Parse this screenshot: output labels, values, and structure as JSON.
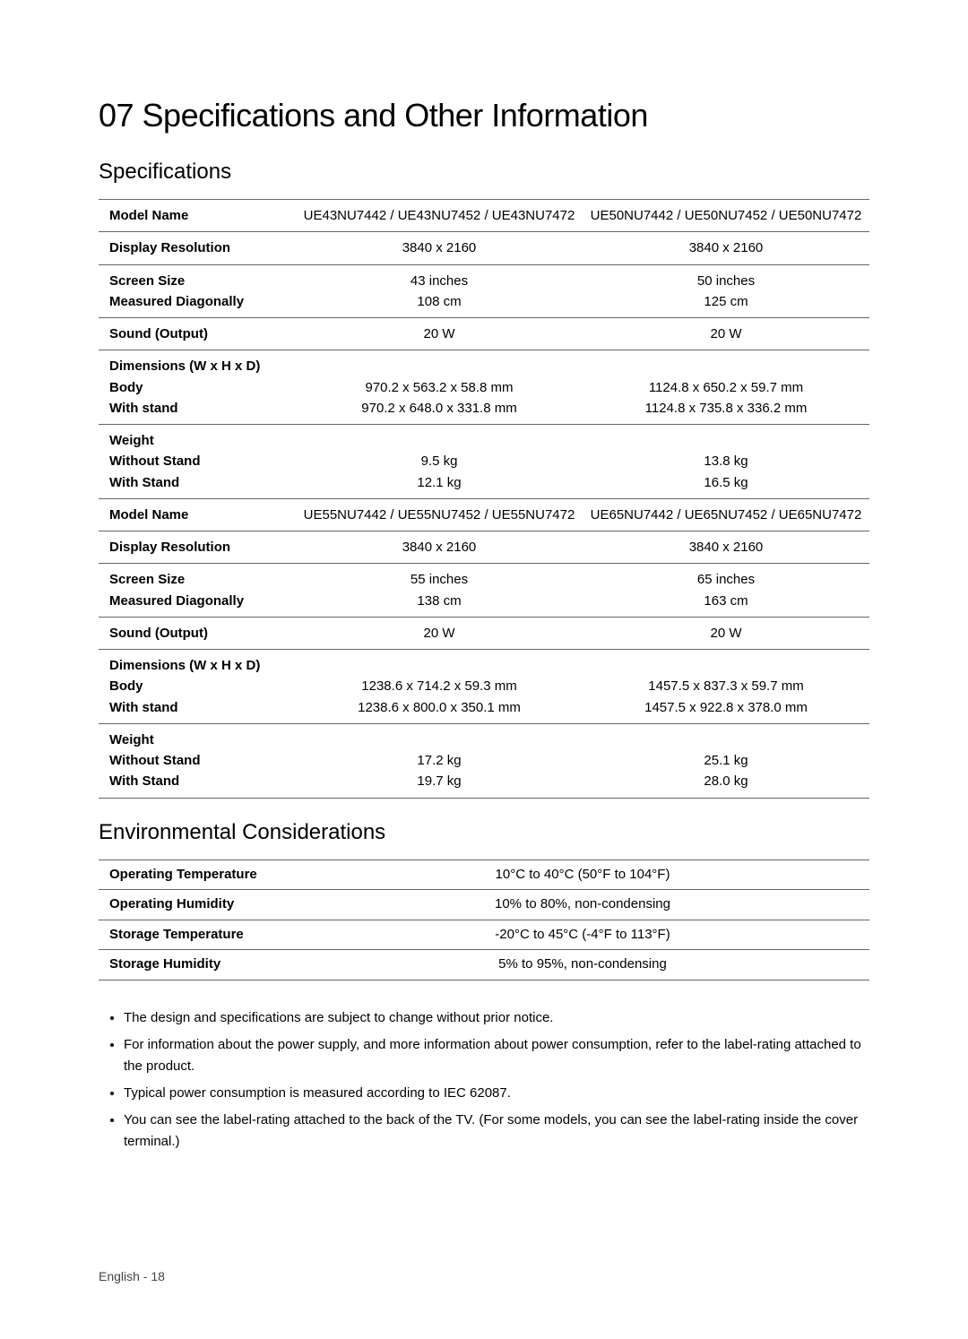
{
  "page_title": "07 Specifications and Other Information",
  "specifications": {
    "heading": "Specifications",
    "rows1": [
      {
        "label": "Model Name",
        "col1": "UE43NU7442 / UE43NU7452 / UE43NU7472",
        "col2": "UE50NU7442 / UE50NU7452 / UE50NU7472"
      },
      {
        "label": "Display Resolution",
        "col1": "3840 x 2160",
        "col2": "3840 x 2160"
      },
      {
        "label": "Screen Size\nMeasured Diagonally",
        "col1": "43 inches\n108 cm",
        "col2": "50 inches\n125 cm"
      },
      {
        "label": "Sound (Output)",
        "col1": "20 W",
        "col2": "20 W"
      },
      {
        "label": "Dimensions (W x H x D)\nBody\nWith stand",
        "col1": "\n970.2 x 563.2 x 58.8 mm\n970.2 x 648.0 x 331.8 mm",
        "col2": "\n1124.8 x 650.2 x 59.7 mm\n1124.8 x 735.8 x 336.2 mm"
      },
      {
        "label": "Weight\nWithout Stand\nWith Stand",
        "col1": "\n9.5 kg\n12.1 kg",
        "col2": "\n13.8 kg\n16.5 kg"
      },
      {
        "label": "Model Name",
        "col1": "UE55NU7442 / UE55NU7452 / UE55NU7472",
        "col2": "UE65NU7442 / UE65NU7452 / UE65NU7472"
      },
      {
        "label": "Display Resolution",
        "col1": "3840 x 2160",
        "col2": "3840 x 2160"
      },
      {
        "label": "Screen Size\nMeasured Diagonally",
        "col1": "55 inches\n138 cm",
        "col2": "65 inches\n163 cm"
      },
      {
        "label": "Sound (Output)",
        "col1": "20 W",
        "col2": "20 W"
      },
      {
        "label": "Dimensions (W x H x D)\nBody\nWith stand",
        "col1": "\n1238.6 x 714.2 x 59.3 mm\n1238.6 x 800.0 x 350.1 mm",
        "col2": "\n1457.5 x 837.3 x 59.7 mm\n1457.5 x 922.8 x 378.0 mm"
      },
      {
        "label": "Weight\nWithout Stand\nWith Stand",
        "col1": "\n17.2 kg\n19.7 kg",
        "col2": "\n25.1 kg\n28.0 kg"
      }
    ]
  },
  "environmental": {
    "heading": "Environmental Considerations",
    "rows": [
      {
        "label": "Operating Temperature",
        "val": "10°C to 40°C (50°F to 104°F)"
      },
      {
        "label": "Operating Humidity",
        "val": "10% to 80%, non-condensing"
      },
      {
        "label": "Storage Temperature",
        "val": "-20°C to 45°C (-4°F to 113°F)"
      },
      {
        "label": "Storage Humidity",
        "val": "5% to 95%, non-condensing"
      }
    ]
  },
  "notes": [
    "The design and specifications are subject to change without prior notice.",
    "For information about the power supply, and more information about power consumption, refer to the label-rating attached to the product.",
    "Typical power consumption is measured according to IEC 62087.",
    "You can see the label-rating attached to the back of the TV. (For some models, you can see the label-rating inside the cover terminal.)"
  ],
  "footer": "English - 18"
}
